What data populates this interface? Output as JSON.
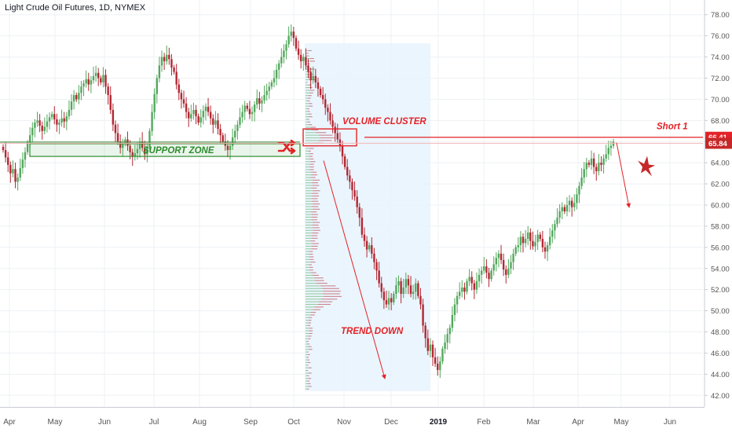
{
  "title": "Light Crude Oil Futures, 1D, NYMEX",
  "colors": {
    "up": "#53a85d",
    "down": "#b22833",
    "annotation": "#e32227",
    "support": "#2e8b2e",
    "grid": "#eef0f3",
    "axis_text": "#555555",
    "profile_bg": "#e8f3fd",
    "price_tag": "#e32227"
  },
  "chart_data": {
    "type": "candlestick",
    "ylim": [
      41.5,
      78.5
    ],
    "y_ticks": [
      "42.00",
      "44.00",
      "46.00",
      "48.00",
      "50.00",
      "52.00",
      "54.00",
      "56.00",
      "58.00",
      "60.00",
      "62.00",
      "64.00",
      "66.00",
      "68.00",
      "70.00",
      "72.00",
      "74.00",
      "76.00",
      "78.00"
    ],
    "x_ticks": [
      "Apr",
      "May",
      "Jun",
      "Jul",
      "Aug",
      "Sep",
      "Oct",
      "Nov",
      "Dec",
      "2019",
      "Feb",
      "Mar",
      "Apr",
      "May",
      "Jun"
    ],
    "closes": [
      65.2,
      64.5,
      63.8,
      63.0,
      63.4,
      62.2,
      62.6,
      63.5,
      64.3,
      65.0,
      65.9,
      66.6,
      67.3,
      67.8,
      68.0,
      67.5,
      67.0,
      67.4,
      67.9,
      68.3,
      68.6,
      68.1,
      67.6,
      67.8,
      68.2,
      67.9,
      68.4,
      69.0,
      69.8,
      70.4,
      70.0,
      70.6,
      71.2,
      71.5,
      71.9,
      71.4,
      71.8,
      72.2,
      72.5,
      72.0,
      71.6,
      72.3,
      71.2,
      70.4,
      69.0,
      67.6,
      66.8,
      66.0,
      65.4,
      65.8,
      66.2,
      65.6,
      65.0,
      64.6,
      64.9,
      65.3,
      66.0,
      65.4,
      64.8,
      65.5,
      67.0,
      68.8,
      70.5,
      72.0,
      73.2,
      74.0,
      73.6,
      74.2,
      73.8,
      73.0,
      72.6,
      71.4,
      70.6,
      70.0,
      69.6,
      68.8,
      68.2,
      68.6,
      69.0,
      68.4,
      67.8,
      68.3,
      68.9,
      69.3,
      68.8,
      68.2,
      67.6,
      68.0,
      67.2,
      66.6,
      66.0,
      65.6,
      65.2,
      65.6,
      66.4,
      67.0,
      67.6,
      68.3,
      68.8,
      69.4,
      69.1,
      68.6,
      68.8,
      69.5,
      70.1,
      69.6,
      69.9,
      70.4,
      70.8,
      71.2,
      71.6,
      72.0,
      72.8,
      73.4,
      74.0,
      74.6,
      75.2,
      76.0,
      76.4,
      75.8,
      74.8,
      74.2,
      73.6,
      74.0,
      73.2,
      72.6,
      71.8,
      72.2,
      71.6,
      71.0,
      70.4,
      70.0,
      69.2,
      68.8,
      68.0,
      67.4,
      66.8,
      66.2,
      65.6,
      64.6,
      63.6,
      62.8,
      62.2,
      61.4,
      60.8,
      59.8,
      58.8,
      57.2,
      56.6,
      55.8,
      56.2,
      55.4,
      54.6,
      53.8,
      52.6,
      51.8,
      51.0,
      50.6,
      51.2,
      50.8,
      51.6,
      52.4,
      52.8,
      51.6,
      52.2,
      53.0,
      52.4,
      51.6,
      51.8,
      52.6,
      51.4,
      50.6,
      48.6,
      47.4,
      46.2,
      46.8,
      45.6,
      45.0,
      44.4,
      45.2,
      46.4,
      47.0,
      47.8,
      48.4,
      49.6,
      50.6,
      51.4,
      51.8,
      52.2,
      51.8,
      52.8,
      53.2,
      52.6,
      52.0,
      52.8,
      53.4,
      53.8,
      54.2,
      53.6,
      53.0,
      53.8,
      54.4,
      55.0,
      55.4,
      54.8,
      53.9,
      53.4,
      54.0,
      54.6,
      55.4,
      56.0,
      56.2,
      57.0,
      56.4,
      56.8,
      57.4,
      56.6,
      56.1,
      56.5,
      57.2,
      56.8,
      56.0,
      55.6,
      56.2,
      57.0,
      57.6,
      58.2,
      58.8,
      59.4,
      59.8,
      59.4,
      60.0,
      60.4,
      59.8,
      60.2,
      61.0,
      61.8,
      62.6,
      63.4,
      64.0,
      63.8,
      64.4,
      63.6,
      63.2,
      64.0,
      63.8,
      64.4,
      64.8,
      65.4,
      65.6,
      66.0
    ],
    "horizontal_levels": [
      66.41,
      65.84
    ],
    "price_labels": [
      "66.41",
      "65.84"
    ],
    "support_zone": [
      64.6,
      65.8
    ],
    "volume_cluster_zone": [
      65.6,
      67.2
    ],
    "annotations": {
      "support": "SUPPORT ZONE",
      "cluster": "VOLUME CLUSTER",
      "trend": "TREND DOWN",
      "short": "Short 1"
    }
  }
}
